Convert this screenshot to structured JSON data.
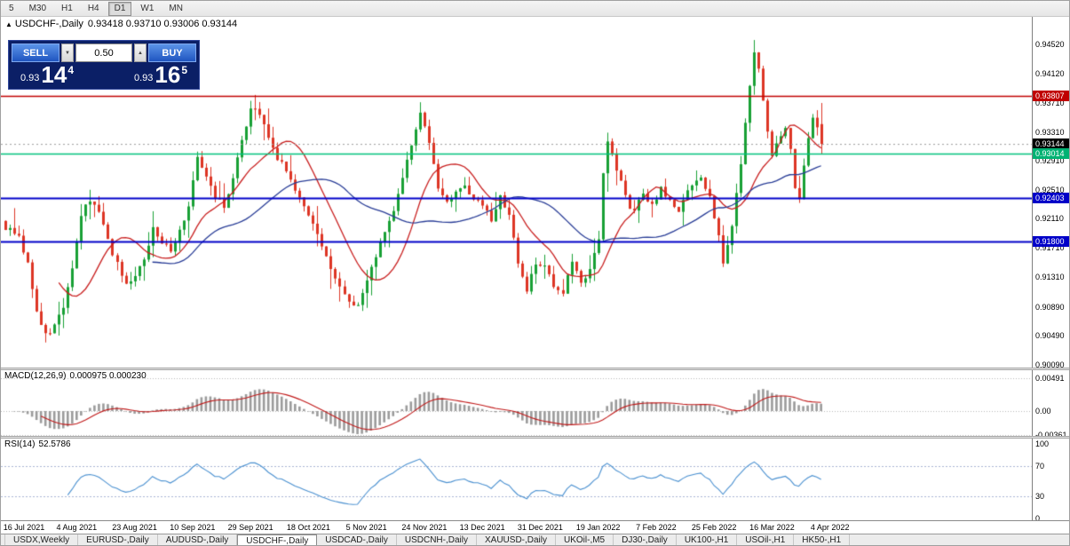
{
  "toolbar": {
    "items": [
      {
        "label": "5",
        "active": false
      },
      {
        "label": "M30",
        "active": false
      },
      {
        "label": "H1",
        "active": false
      },
      {
        "label": "H4",
        "active": false
      },
      {
        "label": "D1",
        "active": true
      },
      {
        "label": "W1",
        "active": false
      },
      {
        "label": "MN",
        "active": false
      }
    ]
  },
  "chart": {
    "title": {
      "marker": "▲",
      "symbol": "USDCHF-,Daily",
      "ohlc": "0.93418 0.93710 0.93006 0.93144"
    },
    "price_axis": {
      "labels": [
        "0.94520",
        "0.94120",
        "0.93710",
        "0.93310",
        "0.92910",
        "0.92510",
        "0.92110",
        "0.91710",
        "0.91310",
        "0.90890",
        "0.90490",
        "0.90090"
      ],
      "markers": [
        {
          "name": "resistance-price-label",
          "label": "0.93807",
          "value": 0.93807,
          "color": "#c00000"
        },
        {
          "name": "bid-price-label",
          "label": "0.93144",
          "value": 0.93144,
          "color": "#000000"
        },
        {
          "name": "pivot-price-label",
          "label": "0.93014",
          "value": 0.93014,
          "color": "#00b273"
        },
        {
          "name": "support1-price-label",
          "label": "0.92403",
          "value": 0.92403,
          "color": "#0000c8"
        },
        {
          "name": "support2-price-label",
          "label": "0.91800",
          "value": 0.918,
          "color": "#0000c8"
        }
      ]
    }
  },
  "trade_panel": {
    "sell_label": "SELL",
    "buy_label": "BUY",
    "volume": "0.50",
    "spin_down": "▼",
    "spin_up": "▲",
    "sell_price": {
      "base": "0.93",
      "big": "14",
      "sup": "4"
    },
    "buy_price": {
      "base": "0.93",
      "big": "16",
      "sup": "5"
    }
  },
  "macd": {
    "name": "MACD(12,26,9)",
    "values": "0.000975 0.000230",
    "axis": [
      "0.00491",
      "0.00",
      "-0.00361"
    ]
  },
  "rsi": {
    "name": "RSI(14)",
    "value": "52.5786",
    "axis": [
      "100",
      "70",
      "30",
      "0"
    ]
  },
  "x_axis": {
    "labels": [
      "16 Jul 2021",
      "4 Aug 2021",
      "23 Aug 2021",
      "10 Sep 2021",
      "29 Sep 2021",
      "18 Oct 2021",
      "5 Nov 2021",
      "24 Nov 2021",
      "13 Dec 2021",
      "31 Dec 2021",
      "19 Jan 2022",
      "7 Feb 2022",
      "25 Feb 2022",
      "16 Mar 2022",
      "4 Apr 2022"
    ]
  },
  "tabs": [
    {
      "label": "USDX,Weekly",
      "active": false
    },
    {
      "label": "EURUSD-,Daily",
      "active": false
    },
    {
      "label": "AUDUSD-,Daily",
      "active": false
    },
    {
      "label": "USDCHF-,Daily",
      "active": true
    },
    {
      "label": "USDCAD-,Daily",
      "active": false
    },
    {
      "label": "USDCNH-,Daily",
      "active": false
    },
    {
      "label": "XAUUSD-,Daily",
      "active": false
    },
    {
      "label": "UKOil-,M5",
      "active": false
    },
    {
      "label": "DJ30-,Daily",
      "active": false
    },
    {
      "label": "UK100-,H1",
      "active": false
    },
    {
      "label": "USOil-,H1",
      "active": false
    },
    {
      "label": "HK50-,H1",
      "active": false
    }
  ],
  "chart_data": {
    "type": "candlestick",
    "symbol": "USDCHF-",
    "timeframe": "Daily",
    "last_bar": {
      "open": 0.93418,
      "high": 0.9371,
      "low": 0.93006,
      "close": 0.93144
    },
    "bid": 0.93144,
    "visible_range": {
      "price_min": 0.9009,
      "price_max": 0.9452,
      "date_start": "16 Jul 2021",
      "date_end": "4 Apr 2022"
    },
    "up_color": "#18a035",
    "down_color": "#dd3524",
    "horizontal_levels": [
      {
        "price": 0.93807,
        "color": "#c00000",
        "width": 1.3
      },
      {
        "price": 0.93014,
        "color": "#00c27d",
        "width": 1.6
      },
      {
        "price": 0.92403,
        "color": "#0000c8",
        "width": 2
      },
      {
        "price": 0.918,
        "color": "#0000c8",
        "width": 2
      }
    ],
    "bid_line": {
      "price": 0.93144,
      "color": "#9a9a9a",
      "width": 1
    },
    "moving_averages": [
      {
        "period": 13,
        "color": "#c81e1e"
      },
      {
        "period": 34,
        "color": "#283c96"
      }
    ],
    "macd": {
      "fast": 12,
      "slow": 26,
      "signal": 9,
      "current_macd": 0.000975,
      "current_signal": 0.00023,
      "bar_color": "#9b9b9b",
      "signal_color": "#c01818"
    },
    "rsi": {
      "period": 14,
      "current": 52.5786,
      "levels": [
        70,
        30
      ],
      "line_color": "#4a90d0"
    },
    "candle_count": 184,
    "noise_seed": 77,
    "date_tick_indices": [
      3,
      16,
      29,
      42,
      55,
      68,
      81,
      94,
      107,
      120,
      133,
      146,
      159,
      172,
      185
    ],
    "close_anchors": [
      [
        0,
        0.92
      ],
      [
        3,
        0.9185
      ],
      [
        5,
        0.915
      ],
      [
        7,
        0.9085
      ],
      [
        9,
        0.9052
      ],
      [
        11,
        0.9062
      ],
      [
        13,
        0.9092
      ],
      [
        15,
        0.914
      ],
      [
        17,
        0.9215
      ],
      [
        19,
        0.9238
      ],
      [
        21,
        0.9225
      ],
      [
        23,
        0.918
      ],
      [
        25,
        0.915
      ],
      [
        27,
        0.9118
      ],
      [
        29,
        0.9132
      ],
      [
        31,
        0.9155
      ],
      [
        33,
        0.92
      ],
      [
        35,
        0.918
      ],
      [
        37,
        0.9165
      ],
      [
        39,
        0.9195
      ],
      [
        41,
        0.923
      ],
      [
        43,
        0.93
      ],
      [
        45,
        0.9268
      ],
      [
        47,
        0.9242
      ],
      [
        49,
        0.9228
      ],
      [
        51,
        0.927
      ],
      [
        53,
        0.932
      ],
      [
        55,
        0.936
      ],
      [
        57,
        0.9358
      ],
      [
        59,
        0.932
      ],
      [
        61,
        0.9296
      ],
      [
        63,
        0.928
      ],
      [
        65,
        0.9248
      ],
      [
        67,
        0.9225
      ],
      [
        69,
        0.9202
      ],
      [
        71,
        0.9172
      ],
      [
        73,
        0.914
      ],
      [
        75,
        0.9118
      ],
      [
        77,
        0.9098
      ],
      [
        79,
        0.9088
      ],
      [
        81,
        0.9125
      ],
      [
        83,
        0.916
      ],
      [
        85,
        0.9192
      ],
      [
        87,
        0.9225
      ],
      [
        89,
        0.9268
      ],
      [
        91,
        0.9312
      ],
      [
        93,
        0.9355
      ],
      [
        95,
        0.9318
      ],
      [
        97,
        0.9255
      ],
      [
        99,
        0.9232
      ],
      [
        101,
        0.9246
      ],
      [
        103,
        0.9258
      ],
      [
        105,
        0.924
      ],
      [
        107,
        0.9228
      ],
      [
        109,
        0.921
      ],
      [
        111,
        0.924
      ],
      [
        113,
        0.9215
      ],
      [
        115,
        0.915
      ],
      [
        117,
        0.9112
      ],
      [
        119,
        0.915
      ],
      [
        121,
        0.9142
      ],
      [
        123,
        0.912
      ],
      [
        125,
        0.9108
      ],
      [
        127,
        0.9152
      ],
      [
        129,
        0.912
      ],
      [
        131,
        0.9142
      ],
      [
        133,
        0.918
      ],
      [
        134,
        0.927
      ],
      [
        135,
        0.9322
      ],
      [
        137,
        0.9282
      ],
      [
        139,
        0.924
      ],
      [
        141,
        0.9218
      ],
      [
        143,
        0.9248
      ],
      [
        145,
        0.923
      ],
      [
        147,
        0.9252
      ],
      [
        149,
        0.9235
      ],
      [
        151,
        0.9222
      ],
      [
        153,
        0.925
      ],
      [
        155,
        0.9268
      ],
      [
        156,
        0.9268
      ],
      [
        158,
        0.924
      ],
      [
        160,
        0.9185
      ],
      [
        161,
        0.9152
      ],
      [
        163,
        0.92
      ],
      [
        165,
        0.929
      ],
      [
        167,
        0.9395
      ],
      [
        168,
        0.9442
      ],
      [
        169,
        0.942
      ],
      [
        170,
        0.937
      ],
      [
        171,
        0.933
      ],
      [
        172,
        0.9302
      ],
      [
        173,
        0.9318
      ],
      [
        175,
        0.9338
      ],
      [
        176,
        0.9308
      ],
      [
        177,
        0.9252
      ],
      [
        178,
        0.9242
      ],
      [
        179,
        0.9282
      ],
      [
        180,
        0.9318
      ],
      [
        181,
        0.9352
      ],
      [
        182,
        0.9338
      ],
      [
        183,
        0.9314
      ]
    ],
    "overrides": [
      {
        "i": 9,
        "low": 0.904
      },
      {
        "i": 55,
        "high": 0.9374
      },
      {
        "i": 93,
        "high": 0.9372
      },
      {
        "i": 135,
        "high": 0.933
      },
      {
        "i": 168,
        "high": 0.9458
      },
      {
        "i": 183,
        "open": 0.93418,
        "high": 0.9371,
        "low": 0.93006,
        "close": 0.93144
      }
    ]
  }
}
